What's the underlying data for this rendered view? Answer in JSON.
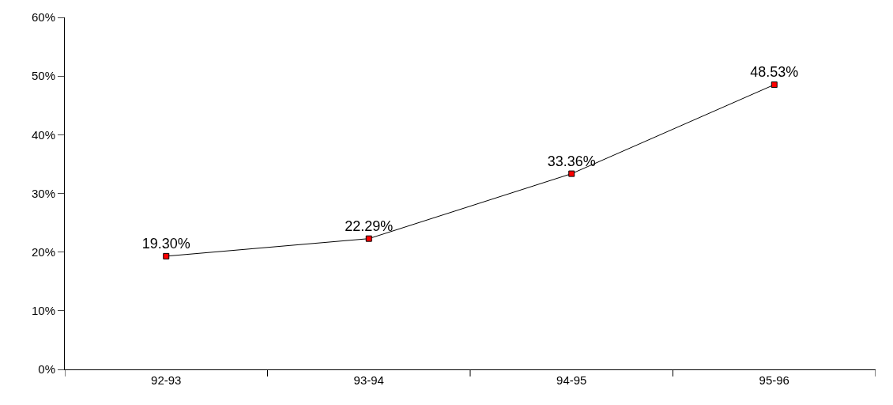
{
  "chart_data": {
    "type": "line",
    "categories": [
      "92-93",
      "93-94",
      "94-95",
      "95-96"
    ],
    "series": [
      {
        "color": "#000000",
        "values": [
          19.3,
          22.29,
          33.36,
          48.53
        ],
        "value_labels": [
          "19.30%",
          "22.29%",
          "33.36%",
          "48.53%"
        ],
        "colors": [
          "#ff0000",
          "#ff0000",
          "#ff0000",
          "#ff0000"
        ]
      }
    ],
    "marker": "square",
    "line_style": "solid",
    "ylim": [
      0,
      60
    ],
    "yticks": [
      {
        "value": 0,
        "label": "0%"
      },
      {
        "value": 10,
        "label": "10%"
      },
      {
        "value": 20,
        "label": "20%"
      },
      {
        "value": 30,
        "label": "30%"
      },
      {
        "value": 40,
        "label": "40%"
      },
      {
        "value": 50,
        "label": "50%"
      },
      {
        "value": 60,
        "label": "60%"
      }
    ],
    "legend": false
  }
}
